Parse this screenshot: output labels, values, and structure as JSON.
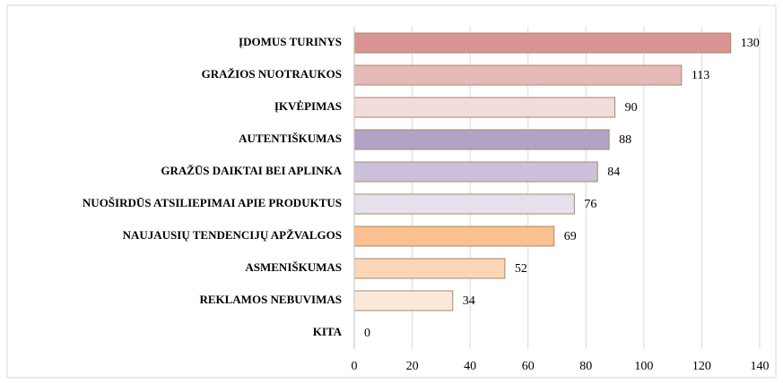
{
  "chart_data": {
    "type": "bar",
    "orientation": "horizontal",
    "categories": [
      "ĮDOMUS TURINYS",
      "GRAŽIOS NUOTRAUKOS",
      "ĮKVĖPIMAS",
      "AUTENTIŠKUMAS",
      "GRAŽŪS DAIKTAI BEI APLINKA",
      "NUOŠIRDŪS ATSILIEPIMAI APIE PRODUKTUS",
      "NAUJAUSIŲ TENDENCIJŲ APŽVALGOS",
      "ASMENIŠKUMAS",
      "REKLAMOS NEBUVIMAS",
      "KITA"
    ],
    "values": [
      130,
      113,
      90,
      88,
      84,
      76,
      69,
      52,
      34,
      0
    ],
    "colors": [
      "#d99594",
      "#e6b9b8",
      "#f2dcdb",
      "#b3a2c7",
      "#ccc1da",
      "#e5e0ec",
      "#fac090",
      "#fcd5b5",
      "#fde9d9",
      "#fde9d9"
    ],
    "xlim": [
      0,
      140
    ],
    "xticks": [
      0,
      20,
      40,
      60,
      80,
      100,
      120,
      140
    ],
    "grid": true
  }
}
